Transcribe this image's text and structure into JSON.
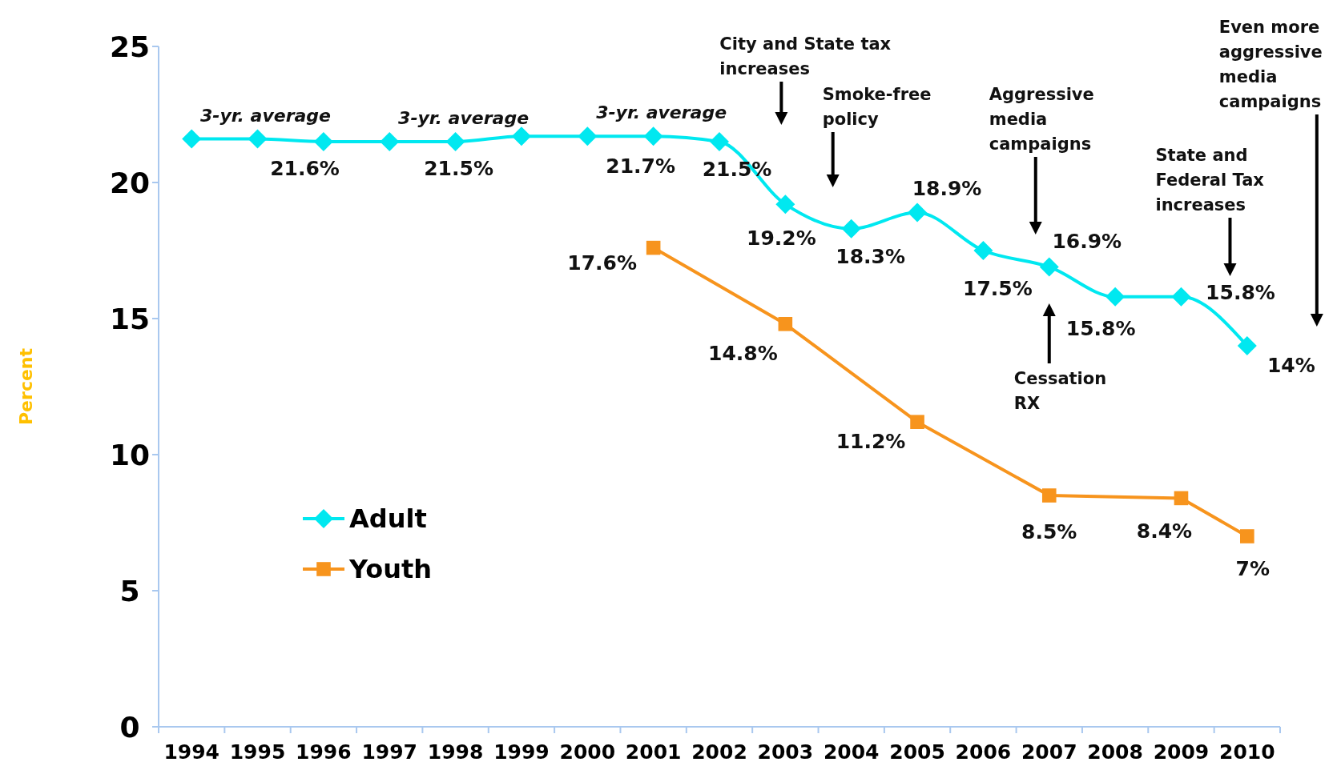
{
  "chart_data": {
    "type": "line",
    "ylabel": "Percent",
    "categories": [
      "1994",
      "1995",
      "1996",
      "1997",
      "1998",
      "1999",
      "2000",
      "2001",
      "2002",
      "2003",
      "2004",
      "2005",
      "2006",
      "2007",
      "2008",
      "2009",
      "2010"
    ],
    "ylim": [
      0,
      25
    ],
    "yticks": [
      0,
      5,
      10,
      15,
      20,
      25
    ],
    "grid": false,
    "legend": "left",
    "line_style": "solid",
    "series": [
      {
        "name": "Adult",
        "color": "#00e8f0",
        "marker": "diamond",
        "values": [
          21.6,
          21.6,
          21.5,
          21.5,
          21.5,
          21.7,
          21.7,
          21.7,
          21.5,
          19.2,
          18.3,
          18.9,
          17.5,
          16.9,
          15.8,
          15.8,
          14
        ],
        "value_labels": [
          null,
          "21.6%",
          null,
          null,
          "21.5%",
          null,
          null,
          "21.7%",
          "21.5%",
          "19.2%",
          "18.3%",
          "18.9%",
          "17.5%",
          "16.9%",
          "15.8%",
          "15.8%",
          "14%"
        ]
      },
      {
        "name": "Youth",
        "color": "#f7941d",
        "marker": "square",
        "values": [
          null,
          null,
          null,
          null,
          null,
          null,
          null,
          17.6,
          null,
          14.8,
          null,
          11.2,
          null,
          8.5,
          null,
          8.4,
          7
        ],
        "value_labels": [
          null,
          null,
          null,
          null,
          null,
          null,
          null,
          "17.6%",
          null,
          "14.8%",
          null,
          "11.2%",
          null,
          "8.5%",
          null,
          "8.4%",
          "7%"
        ]
      }
    ],
    "annotations": [
      {
        "text": "3-yr. average",
        "x": "1995",
        "y": 21.6
      },
      {
        "text": "3-yr. average",
        "x": "1998",
        "y": 21.5
      },
      {
        "text": "3-yr. average",
        "x": "2001",
        "y": 21.7
      },
      "City and State tax\nincreases",
      "Smoke-free\npolicy",
      "Aggressive\nmedia\ncampaigns",
      "State and\nFederal Tax\nincreases",
      "Even more\naggressive\nmedia\ncampaigns",
      "Cessation\nRX"
    ]
  }
}
